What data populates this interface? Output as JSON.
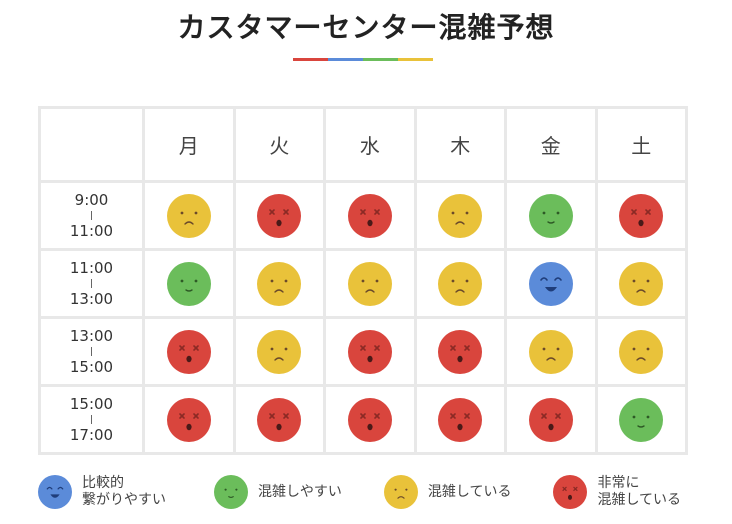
{
  "header": {
    "title": "カスタマーセンター混雑予想",
    "rule_colors": [
      "#d9453d",
      "#5b8bd9",
      "#6bbd5b",
      "#e9c23a"
    ]
  },
  "table": {
    "days": [
      "月",
      "火",
      "水",
      "木",
      "金",
      "土"
    ],
    "rows": [
      {
        "start": "9:00",
        "end": "11:00",
        "levels": [
          "crowded",
          "very_crowded",
          "very_crowded",
          "crowded",
          "easy",
          "very_crowded"
        ]
      },
      {
        "start": "11:00",
        "end": "13:00",
        "levels": [
          "easy",
          "crowded",
          "crowded",
          "crowded",
          "relatively_easy",
          "crowded"
        ]
      },
      {
        "start": "13:00",
        "end": "15:00",
        "levels": [
          "very_crowded",
          "crowded",
          "very_crowded",
          "very_crowded",
          "crowded",
          "crowded"
        ]
      },
      {
        "start": "15:00",
        "end": "17:00",
        "levels": [
          "very_crowded",
          "very_crowded",
          "very_crowded",
          "very_crowded",
          "very_crowded",
          "easy"
        ]
      }
    ]
  },
  "levels": {
    "relatively_easy": {
      "color": "#5b8bd9",
      "icon": "happy-face-icon"
    },
    "easy": {
      "color": "#6bbd5b",
      "icon": "neutral-face-icon"
    },
    "crowded": {
      "color": "#e9c23a",
      "icon": "sad-face-icon"
    },
    "very_crowded": {
      "color": "#d9453d",
      "icon": "dizzy-face-icon"
    }
  },
  "legend": [
    {
      "level": "relatively_easy",
      "label": "比較的\n繋がりやすい"
    },
    {
      "level": "easy",
      "label": "混雑しやすい"
    },
    {
      "level": "crowded",
      "label": "混雑している"
    },
    {
      "level": "very_crowded",
      "label": "非常に\n混雑している"
    }
  ]
}
